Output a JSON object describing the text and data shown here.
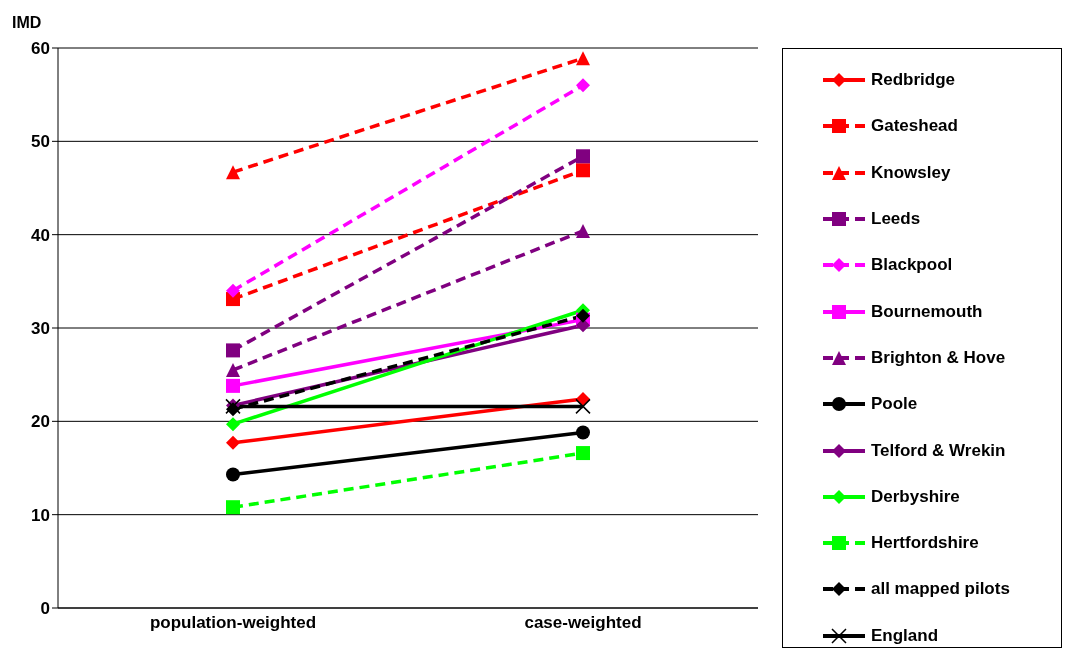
{
  "chart_data": {
    "type": "line",
    "ylabel": "IMD",
    "categories": [
      "population-weighted",
      "case-weighted"
    ],
    "ylim": [
      0,
      60
    ],
    "yticks": [
      0,
      10,
      20,
      30,
      40,
      50,
      60
    ],
    "grid": "y",
    "legend": "right",
    "series": [
      {
        "name": "Redbridge",
        "color": "#ff0000",
        "marker": "diamond",
        "line_style": "solid",
        "values": [
          17.7,
          22.4
        ]
      },
      {
        "name": "Gateshead",
        "color": "#ff0000",
        "marker": "square",
        "line_style": "dashed",
        "values": [
          33.1,
          46.9
        ]
      },
      {
        "name": "Knowsley",
        "color": "#ff0000",
        "marker": "triangle",
        "line_style": "dashed",
        "values": [
          46.7,
          58.9
        ]
      },
      {
        "name": "Leeds",
        "color": "#800080",
        "marker": "square",
        "line_style": "dashed",
        "values": [
          27.6,
          48.4
        ]
      },
      {
        "name": "Blackpool",
        "color": "#ff00ff",
        "marker": "diamond",
        "line_style": "dashed",
        "values": [
          34.0,
          56.0
        ]
      },
      {
        "name": "Bournemouth",
        "color": "#ff00ff",
        "marker": "square",
        "line_style": "solid",
        "values": [
          23.8,
          30.9
        ]
      },
      {
        "name": "Brighton & Hove",
        "color": "#800080",
        "marker": "triangle",
        "line_style": "dashed",
        "values": [
          25.5,
          40.4
        ]
      },
      {
        "name": "Poole",
        "color": "#000000",
        "marker": "circle",
        "line_style": "solid",
        "values": [
          14.3,
          18.8
        ]
      },
      {
        "name": "Telford & Wrekin",
        "color": "#800080",
        "marker": "diamond",
        "line_style": "solid",
        "values": [
          21.7,
          30.3
        ]
      },
      {
        "name": "Derbyshire",
        "color": "#00ff00",
        "marker": "diamond",
        "line_style": "solid",
        "values": [
          19.7,
          31.9
        ]
      },
      {
        "name": "Hertfordshire",
        "color": "#00ff00",
        "marker": "square",
        "line_style": "dashed",
        "values": [
          10.8,
          16.6
        ]
      },
      {
        "name": "all mapped pilots",
        "color": "#000000",
        "marker": "diamond",
        "line_style": "dashed",
        "values": [
          21.3,
          31.3
        ]
      },
      {
        "name": "England",
        "color": "#000000",
        "marker": "cross",
        "line_style": "solid",
        "values": [
          21.6,
          21.6
        ]
      }
    ]
  }
}
